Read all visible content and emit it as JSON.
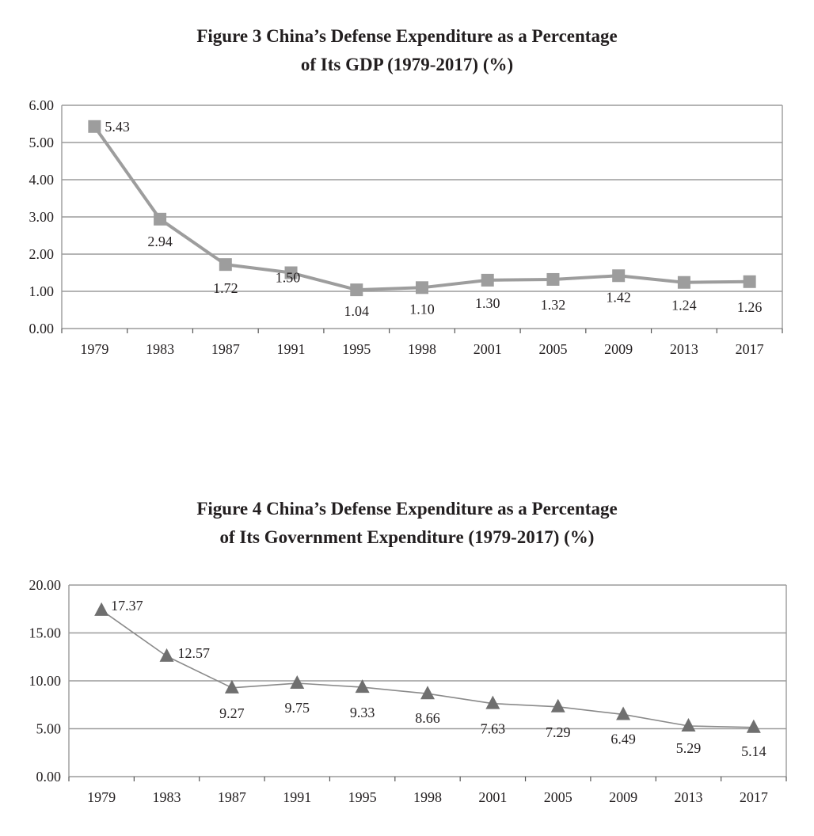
{
  "chart_data": [
    {
      "type": "line",
      "title_line1": "Figure 3 China’s Defense Expenditure as a Percentage",
      "title_line2": "of Its GDP (1979-2017) (%)",
      "categories": [
        "1979",
        "1983",
        "1987",
        "1991",
        "1995",
        "1998",
        "2001",
        "2005",
        "2009",
        "2013",
        "2017"
      ],
      "values": [
        5.43,
        2.94,
        1.72,
        1.5,
        1.04,
        1.1,
        1.3,
        1.32,
        1.42,
        1.24,
        1.26
      ],
      "value_labels": [
        "5.43",
        "2.94",
        "1.72",
        "1.50",
        "1.04",
        "1.10",
        "1.30",
        "1.32",
        "1.42",
        "1.24",
        "1.26"
      ],
      "yticks": [
        "0.00",
        "1.00",
        "2.00",
        "3.00",
        "4.00",
        "5.00",
        "6.00"
      ],
      "ylim": [
        0,
        6
      ],
      "marker": "square",
      "grid": true,
      "colors": {
        "line": "#9d9d9d",
        "marker": "#9d9d9d",
        "grid": "#9b9b9b",
        "text": "#231f20"
      }
    },
    {
      "type": "line",
      "title_line1": "Figure 4 China’s Defense Expenditure as a Percentage",
      "title_line2": "of Its Government Expenditure (1979-2017) (%)",
      "categories": [
        "1979",
        "1983",
        "1987",
        "1991",
        "1995",
        "1998",
        "2001",
        "2005",
        "2009",
        "2013",
        "2017"
      ],
      "values": [
        17.37,
        12.57,
        9.27,
        9.75,
        9.33,
        8.66,
        7.63,
        7.29,
        6.49,
        5.29,
        5.14
      ],
      "value_labels": [
        "17.37",
        "12.57",
        "9.27",
        "9.75",
        "9.33",
        "8.66",
        "7.63",
        "7.29",
        "6.49",
        "5.29",
        "5.14"
      ],
      "yticks": [
        "0.00",
        "5.00",
        "10.00",
        "15.00",
        "20.00"
      ],
      "ylim": [
        0,
        20
      ],
      "marker": "triangle",
      "grid": true,
      "colors": {
        "line": "#8a8a8a",
        "marker": "#6f6f6f",
        "grid": "#9b9b9b",
        "text": "#231f20"
      }
    }
  ]
}
